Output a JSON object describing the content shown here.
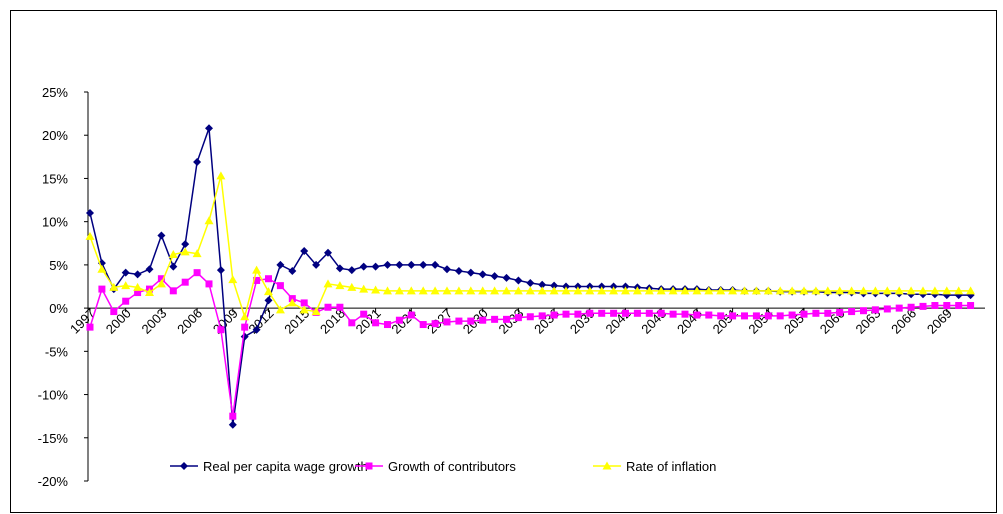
{
  "chart_data": {
    "type": "line",
    "categories": [
      "1997",
      null,
      null,
      "2000",
      null,
      null,
      "2003",
      null,
      null,
      "2006",
      null,
      null,
      "2009",
      null,
      null,
      "2012",
      null,
      null,
      "2015",
      null,
      null,
      "2018",
      null,
      null,
      "2021",
      null,
      null,
      "2024",
      null,
      null,
      "2027",
      null,
      null,
      "2030",
      null,
      null,
      "2033",
      null,
      null,
      "2036",
      null,
      null,
      "2039",
      null,
      null,
      "2042",
      null,
      null,
      "2045",
      null,
      null,
      "2048",
      null,
      null,
      "2051",
      null,
      null,
      "2054",
      null,
      null,
      "2057",
      null,
      null,
      "2060",
      null,
      null,
      "2063",
      null,
      null,
      "2066",
      null,
      null,
      "2069",
      null,
      null
    ],
    "series": [
      {
        "name": "Real per capita wage growth",
        "color": "#000080",
        "marker": "diamond",
        "values": [
          11,
          5.2,
          2.2,
          4.1,
          3.9,
          4.5,
          8.4,
          4.8,
          7.4,
          16.9,
          20.8,
          4.4,
          -13.5,
          -3.3,
          -2.5,
          0.9,
          5.0,
          4.3,
          6.6,
          5.0,
          6.4,
          4.6,
          4.4,
          4.8,
          4.8,
          5.0,
          5.0,
          5.0,
          5.0,
          5.0,
          4.5,
          4.3,
          4.1,
          3.9,
          3.7,
          3.5,
          3.2,
          2.9,
          2.7,
          2.6,
          2.5,
          2.5,
          2.5,
          2.5,
          2.5,
          2.5,
          2.4,
          2.3,
          2.2,
          2.2,
          2.2,
          2.2,
          2.1,
          2.1,
          2.1,
          2.0,
          2.0,
          2.0,
          1.9,
          1.9,
          1.9,
          1.9,
          1.8,
          1.8,
          1.8,
          1.7,
          1.7,
          1.7,
          1.7,
          1.6,
          1.6,
          1.6,
          1.5,
          1.5,
          1.5
        ]
      },
      {
        "name": "Growth of contributors",
        "color": "#ff00ff",
        "marker": "square",
        "values": [
          -2.2,
          2.2,
          -0.4,
          0.8,
          1.8,
          2.2,
          3.4,
          2.0,
          3.0,
          4.1,
          2.8,
          -2.5,
          -12.5,
          -2.2,
          3.2,
          3.4,
          2.6,
          1.1,
          0.6,
          -0.5,
          0.1,
          0.1,
          -1.7,
          -0.7,
          -1.7,
          -1.9,
          -1.4,
          -0.8,
          -1.9,
          -1.8,
          -1.6,
          -1.5,
          -1.5,
          -1.4,
          -1.3,
          -1.3,
          -1.1,
          -1.0,
          -0.9,
          -0.8,
          -0.7,
          -0.7,
          -0.6,
          -0.6,
          -0.6,
          -0.6,
          -0.6,
          -0.6,
          -0.6,
          -0.7,
          -0.7,
          -0.8,
          -0.8,
          -0.9,
          -0.9,
          -0.9,
          -0.9,
          -0.9,
          -0.9,
          -0.8,
          -0.7,
          -0.6,
          -0.6,
          -0.5,
          -0.4,
          -0.3,
          -0.2,
          -0.1,
          0.0,
          0.1,
          0.2,
          0.3,
          0.3,
          0.3,
          0.3
        ]
      },
      {
        "name": "Rate of inflation",
        "color": "#ffff00",
        "marker": "triangle",
        "values": [
          8.3,
          4.5,
          2.4,
          2.6,
          2.4,
          1.8,
          2.8,
          6.2,
          6.5,
          6.3,
          10.1,
          15.3,
          3.3,
          -1.0,
          4.4,
          1.9,
          -0.2,
          0.6,
          -0.2,
          -0.4,
          2.8,
          2.6,
          2.4,
          2.2,
          2.1,
          2.0,
          2.0,
          2.0,
          2.0,
          2.0,
          2.0,
          2.0,
          2.0,
          2.0,
          2.0,
          2.0,
          2.0,
          2.0,
          2.0,
          2.0,
          2.0,
          2.0,
          2.0,
          2.0,
          2.0,
          2.0,
          2.0,
          2.0,
          2.0,
          2.0,
          2.0,
          2.0,
          2.0,
          2.0,
          2.0,
          2.0,
          2.0,
          2.0,
          2.0,
          2.0,
          2.0,
          2.0,
          2.0,
          2.0,
          2.0,
          2.0,
          2.0,
          2.0,
          2.0,
          2.0,
          2.0,
          2.0,
          2.0,
          2.0,
          2.0
        ]
      }
    ],
    "ylim": [
      -20,
      25
    ],
    "yticks": [
      {
        "value": -20,
        "label": "-20%"
      },
      {
        "value": -15,
        "label": "-15%"
      },
      {
        "value": -10,
        "label": "-10%"
      },
      {
        "value": -5,
        "label": "-5%"
      },
      {
        "value": 0,
        "label": "0%"
      },
      {
        "value": 5,
        "label": "5%"
      },
      {
        "value": 10,
        "label": "10%"
      },
      {
        "value": 15,
        "label": "15%"
      },
      {
        "value": 20,
        "label": "20%"
      },
      {
        "value": 25,
        "label": "25%"
      }
    ],
    "grid": false,
    "legend": "bottom"
  }
}
